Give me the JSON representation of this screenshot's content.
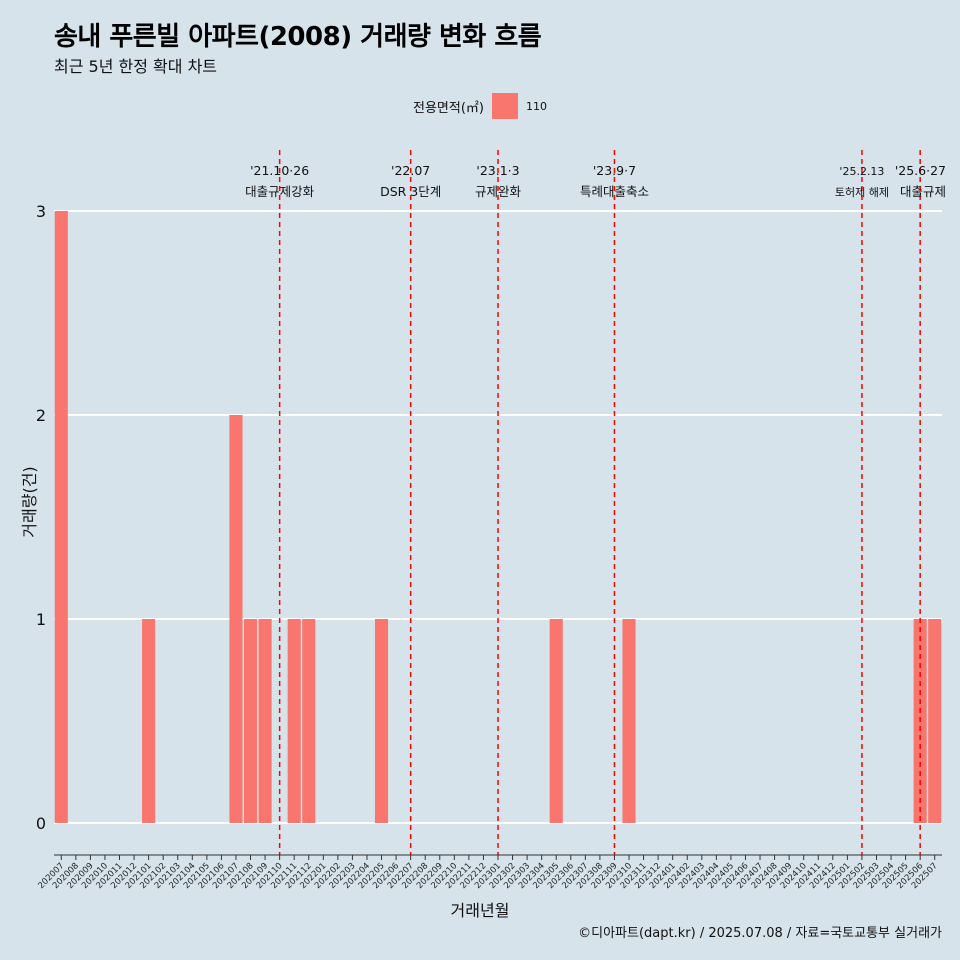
{
  "chart_data": {
    "type": "bar",
    "title": "송내 푸른빌 아파트(2008) 거래량 변화 흐름",
    "subtitle": "최근 5년 한정 확대 차트",
    "xlabel": "거래년월",
    "ylabel": "거래량(건)",
    "legend_title": "전용면적(㎡)",
    "legend_position": "top",
    "caption": "©디아파트(dapt.kr) / 2025.07.08 / 자료=국토교통부 실거래가",
    "ylim": [
      0,
      3
    ],
    "yticks": [
      "0",
      "1",
      "2",
      "3"
    ],
    "grid": true,
    "categories": [
      "202007",
      "202008",
      "202009",
      "202010",
      "202011",
      "202012",
      "202101",
      "202102",
      "202103",
      "202104",
      "202105",
      "202106",
      "202107",
      "202108",
      "202109",
      "202110",
      "202111",
      "202112",
      "202201",
      "202202",
      "202203",
      "202204",
      "202205",
      "202206",
      "202207",
      "202208",
      "202209",
      "202210",
      "202211",
      "202212",
      "202301",
      "202302",
      "202303",
      "202304",
      "202305",
      "202306",
      "202307",
      "202308",
      "202309",
      "202310",
      "202311",
      "202312",
      "202401",
      "202402",
      "202403",
      "202404",
      "202405",
      "202406",
      "202407",
      "202408",
      "202409",
      "202410",
      "202411",
      "202412",
      "202501",
      "202502",
      "202503",
      "202504",
      "202505",
      "202506",
      "202507"
    ],
    "series": [
      {
        "name": "110",
        "color": "#f8766d",
        "values": [
          3,
          0,
          0,
          0,
          0,
          0,
          1,
          0,
          0,
          0,
          0,
          0,
          2,
          1,
          1,
          0,
          1,
          1,
          0,
          0,
          0,
          0,
          1,
          0,
          0,
          0,
          0,
          0,
          0,
          0,
          0,
          0,
          0,
          0,
          1,
          0,
          0,
          0,
          0,
          1,
          0,
          0,
          0,
          0,
          0,
          0,
          0,
          0,
          0,
          0,
          0,
          0,
          0,
          0,
          0,
          0,
          0,
          0,
          0,
          1,
          1
        ]
      }
    ],
    "annotations": [
      {
        "x": "202110",
        "date": "'21.10·26",
        "label": "대출규제강화"
      },
      {
        "x": "202207",
        "date": "'22.07",
        "label": "DSR 3단계"
      },
      {
        "x": "202301",
        "date": "'23.1·3",
        "label": "규제완화"
      },
      {
        "x": "202309",
        "date": "'23.9·7",
        "label": "특례대출축소"
      },
      {
        "x": "202502",
        "date": "'25.2.13",
        "label": "토허제 해제"
      },
      {
        "x": "202506",
        "date": "'25.6·27",
        "label": "대출규제"
      }
    ],
    "annotation_color": "#ff0000"
  }
}
